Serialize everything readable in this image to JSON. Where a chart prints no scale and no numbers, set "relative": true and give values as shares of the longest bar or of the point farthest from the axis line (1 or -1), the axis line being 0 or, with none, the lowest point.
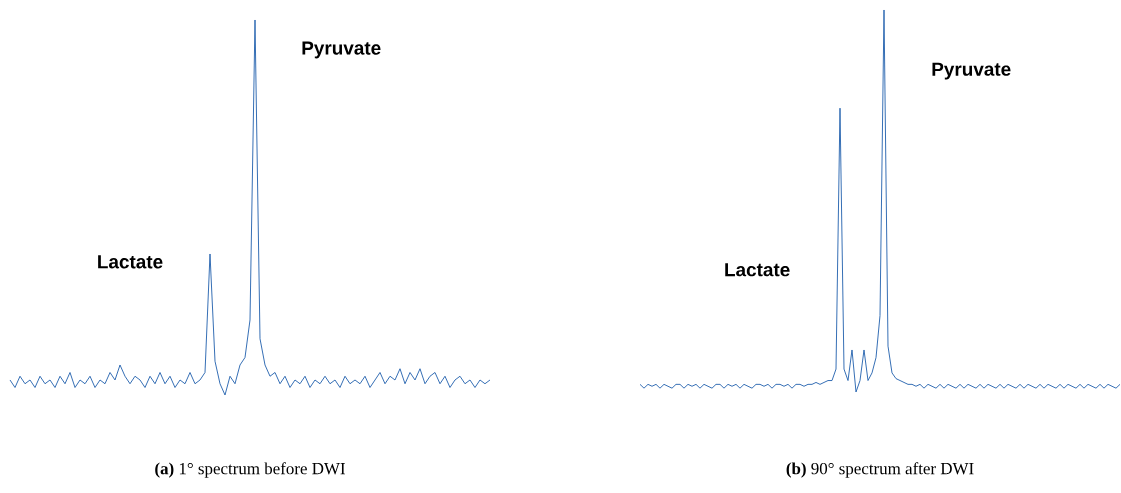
{
  "chart_data": [
    {
      "type": "line",
      "relative": true,
      "title": "**(a)** 1° spectrum before DWI",
      "annotations": [
        "Lactate",
        "Pyruvate"
      ],
      "categories": [
        null,
        null,
        null,
        null,
        null,
        null,
        null,
        null,
        null,
        null,
        null,
        null,
        null,
        null,
        null,
        null,
        null,
        null,
        null,
        null,
        null,
        null,
        null,
        null,
        null,
        null,
        null,
        null,
        null,
        null,
        null,
        null,
        null,
        null,
        null,
        null,
        null,
        null,
        null,
        null,
        null,
        null,
        null,
        null,
        null,
        null,
        null,
        null,
        null,
        null,
        null,
        null,
        null,
        null,
        null,
        null,
        null,
        null,
        null,
        null,
        null,
        null,
        null,
        null,
        null,
        null,
        null,
        null,
        null,
        null,
        null,
        null,
        null,
        null,
        null,
        null,
        null,
        null,
        null,
        null,
        null,
        null,
        null,
        null,
        null,
        null,
        null,
        null,
        null,
        null,
        null,
        null,
        null,
        null,
        null,
        null,
        null
      ],
      "series": [
        {
          "color": "#1f5fad",
          "values": [
            0.04,
            0.02,
            0.05,
            0.03,
            0.04,
            0.02,
            0.05,
            0.03,
            0.04,
            0.02,
            0.05,
            0.03,
            0.06,
            0.02,
            0.04,
            0.03,
            0.05,
            0.02,
            0.04,
            0.03,
            0.06,
            0.04,
            0.08,
            0.05,
            0.03,
            0.05,
            0.04,
            0.02,
            0.05,
            0.03,
            0.06,
            0.03,
            0.05,
            0.02,
            0.04,
            0.03,
            0.06,
            0.03,
            0.04,
            0.06,
            0.376,
            0.09,
            0.03,
            0,
            0.05,
            0.03,
            0.08,
            0.1,
            0.2,
            1,
            0.15,
            0.08,
            0.05,
            0.06,
            0.03,
            0.05,
            0.02,
            0.04,
            0.03,
            0.05,
            0.02,
            0.04,
            0.03,
            0.05,
            0.03,
            0.04,
            0.02,
            0.05,
            0.03,
            0.04,
            0.03,
            0.05,
            0.02,
            0.04,
            0.06,
            0.03,
            0.05,
            0.04,
            0.07,
            0.03,
            0.06,
            0.04,
            0.07,
            0.03,
            0.05,
            0.06,
            0.03,
            0.05,
            0.02,
            0.04,
            0.05,
            0.03,
            0.04,
            0.02,
            0.04,
            0.03,
            0.04
          ]
        }
      ]
    },
    {
      "type": "line",
      "relative": true,
      "title": "**(b)** 90° spectrum after DWI",
      "annotations": [
        "Lactate",
        "Pyruvate"
      ],
      "categories": [
        null,
        null,
        null,
        null,
        null,
        null,
        null,
        null,
        null,
        null,
        null,
        null,
        null,
        null,
        null,
        null,
        null,
        null,
        null,
        null,
        null,
        null,
        null,
        null,
        null,
        null,
        null,
        null,
        null,
        null,
        null,
        null,
        null,
        null,
        null,
        null,
        null,
        null,
        null,
        null,
        null,
        null,
        null,
        null,
        null,
        null,
        null,
        null,
        null,
        null,
        null,
        null,
        null,
        null,
        null,
        null,
        null,
        null,
        null,
        null,
        null,
        null,
        null,
        null,
        null,
        null,
        null,
        null,
        null,
        null,
        null,
        null,
        null,
        null,
        null,
        null,
        null,
        null,
        null,
        null,
        null,
        null,
        null,
        null,
        null,
        null,
        null,
        null,
        null,
        null,
        null,
        null,
        null,
        null,
        null,
        null,
        null,
        null,
        null,
        null,
        null,
        null,
        null,
        null,
        null,
        null,
        null,
        null,
        null,
        null,
        null,
        null,
        null,
        null,
        null,
        null,
        null,
        null,
        null,
        null,
        null
      ],
      "series": [
        {
          "color": "#1f5fad",
          "values": [
            0.02,
            0.01,
            0.02,
            0.015,
            0.02,
            0.01,
            0.02,
            0.015,
            0.01,
            0.02,
            0.02,
            0.01,
            0.02,
            0.015,
            0.02,
            0.01,
            0.02,
            0.015,
            0.01,
            0.02,
            0.02,
            0.01,
            0.02,
            0.015,
            0.02,
            0.01,
            0.02,
            0.015,
            0.01,
            0.02,
            0.02,
            0.015,
            0.02,
            0.01,
            0.02,
            0.02,
            0.015,
            0.02,
            0.01,
            0.02,
            0.02,
            0.015,
            0.02,
            0.02,
            0.025,
            0.02,
            0.025,
            0.03,
            0.03,
            0.06,
            0.743,
            0.06,
            0.03,
            0.11,
            0,
            0.03,
            0.11,
            0.03,
            0.05,
            0.09,
            0.2,
            1,
            0.12,
            0.05,
            0.035,
            0.03,
            0.025,
            0.02,
            0.02,
            0.015,
            0.02,
            0.01,
            0.02,
            0.015,
            0.01,
            0.02,
            0.01,
            0.02,
            0.015,
            0.01,
            0.02,
            0.01,
            0.02,
            0.015,
            0.01,
            0.02,
            0.01,
            0.02,
            0.015,
            0.01,
            0.02,
            0.01,
            0.02,
            0.015,
            0.01,
            0.02,
            0.01,
            0.02,
            0.015,
            0.01,
            0.02,
            0.01,
            0.02,
            0.015,
            0.01,
            0.02,
            0.01,
            0.02,
            0.015,
            0.01,
            0.02,
            0.01,
            0.02,
            0.015,
            0.01,
            0.02,
            0.01,
            0.02,
            0.015,
            0.01,
            0.02
          ]
        }
      ]
    }
  ]
}
